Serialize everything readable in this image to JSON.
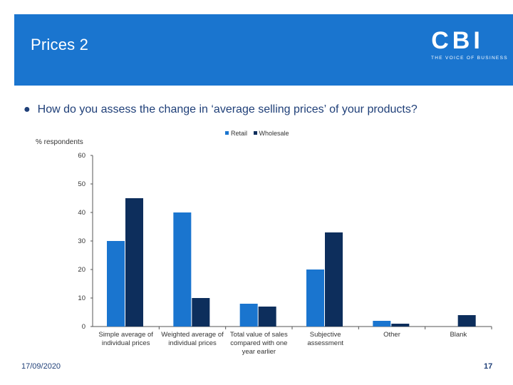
{
  "slide": {
    "title": "Prices 2",
    "question": "How do you assess the change in ‘average selling prices’ of your products?",
    "date": "17/09/2020",
    "page_number": "17",
    "logo_text": "CBI",
    "logo_tagline": "THE VOICE OF BUSINESS"
  },
  "colors": {
    "header": "#1a75cf",
    "retail": "#1a75cf",
    "wholesale": "#0d2e5c"
  },
  "chart_data": {
    "type": "bar",
    "title": "",
    "ylabel": "% respondents",
    "xlabel": "",
    "ylim": [
      0,
      60
    ],
    "yticks": [
      "0",
      "10",
      "20",
      "30",
      "40",
      "50",
      "60"
    ],
    "grid": false,
    "legend_position": "top",
    "categories": [
      "Simple average of individual prices",
      "Weighted average of individual prices",
      "Total value of sales compared with one year earlier",
      "Subjective assessment",
      "Other",
      "Blank"
    ],
    "series": [
      {
        "name": "Retail",
        "values": [
          30,
          40,
          8,
          20,
          2,
          0
        ]
      },
      {
        "name": "Wholesale",
        "values": [
          45,
          10,
          7,
          33,
          1,
          4
        ]
      }
    ]
  }
}
